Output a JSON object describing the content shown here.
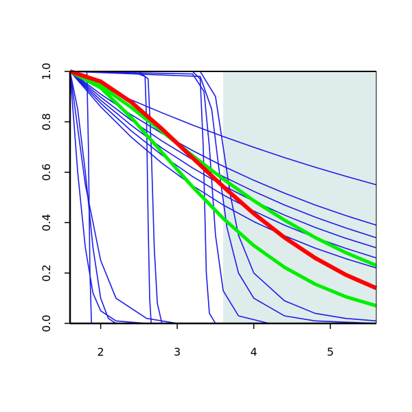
{
  "chart_data": {
    "type": "line",
    "xlim": [
      1.6,
      5.6
    ],
    "ylim": [
      0,
      1
    ],
    "xticks": [
      2,
      3,
      4,
      5
    ],
    "yticks": [
      {
        "value": 0,
        "label": "0.0"
      },
      0.2,
      0.4,
      0.6,
      0.8,
      {
        "value": 1,
        "label": "1.0"
      }
    ],
    "shaded_region": {
      "xlim": [
        3.6,
        5.6
      ],
      "color": "#dfecec"
    },
    "x": [
      1.6,
      2.0,
      2.4,
      2.8,
      3.2,
      3.6,
      4.0,
      4.4,
      4.8,
      5.2,
      5.6
    ],
    "series": [
      {
        "color": "#1c1ce6",
        "width": 1.6,
        "values": [
          1,
          0.942,
          0.887,
          0.836,
          0.787,
          0.742,
          0.699,
          0.658,
          0.62,
          0.584,
          0.55
        ]
      },
      {
        "color": "#1c1ce6",
        "width": 1.6,
        "values": [
          1,
          0.91,
          0.828,
          0.754,
          0.686,
          0.624,
          0.568,
          0.517,
          0.47,
          0.428,
          0.39
        ]
      },
      {
        "color": "#1c1ce6",
        "width": 1.6,
        "values": [
          1,
          0.898,
          0.806,
          0.724,
          0.65,
          0.583,
          0.524,
          0.47,
          0.422,
          0.379,
          0.34
        ]
      },
      {
        "color": "#1c1ce6",
        "width": 1.6,
        "values": [
          1,
          0.886,
          0.786,
          0.696,
          0.617,
          0.547,
          0.485,
          0.43,
          0.381,
          0.338,
          0.3
        ]
      },
      {
        "color": "#1c1ce6",
        "width": 1.6,
        "values": [
          1,
          0.874,
          0.764,
          0.668,
          0.583,
          0.51,
          0.446,
          0.39,
          0.341,
          0.298,
          0.26
        ]
      },
      {
        "color": "#1c1ce6",
        "width": 1.6,
        "values": [
          1,
          0.86,
          0.739,
          0.636,
          0.547,
          0.47,
          0.404,
          0.348,
          0.299,
          0.257,
          0.22
        ]
      },
      {
        "color": "#1c1ce6",
        "width": 1.6,
        "x": [
          1.6,
          1.82,
          1.84,
          1.86,
          1.88,
          5.6
        ],
        "values": [
          1,
          1,
          0.7,
          0.2,
          0,
          0
        ]
      },
      {
        "color": "#1c1ce6",
        "width": 1.6,
        "x": [
          1.6,
          1.7,
          1.8,
          1.9,
          2.0,
          2.2,
          2.6,
          5.6
        ],
        "values": [
          1,
          0.6,
          0.3,
          0.12,
          0.05,
          0.01,
          0,
          0
        ]
      },
      {
        "color": "#1c1ce6",
        "width": 1.6,
        "x": [
          1.6,
          1.8,
          2.0,
          2.2,
          2.6,
          3.0,
          5.6
        ],
        "values": [
          1,
          0.55,
          0.25,
          0.1,
          0.02,
          0,
          0
        ]
      },
      {
        "color": "#1c1ce6",
        "width": 1.6,
        "x": [
          1.6,
          1.7,
          1.8,
          1.9,
          2.0,
          2.1,
          2.2,
          5.6
        ],
        "values": [
          1,
          0.85,
          0.6,
          0.3,
          0.1,
          0.02,
          0,
          0
        ]
      },
      {
        "color": "#1c1ce6",
        "width": 1.6,
        "x": [
          1.6,
          1.8,
          2.4,
          2.58,
          2.6,
          2.62,
          2.64,
          2.66,
          5.6
        ],
        "values": [
          1,
          1,
          1,
          0.98,
          0.8,
          0.4,
          0.1,
          0,
          0
        ]
      },
      {
        "color": "#1c1ce6",
        "width": 1.6,
        "x": [
          1.6,
          2.5,
          2.62,
          2.66,
          2.7,
          2.74,
          2.8,
          5.6
        ],
        "values": [
          1,
          1,
          0.97,
          0.7,
          0.3,
          0.08,
          0,
          0
        ]
      },
      {
        "color": "#1c1ce6",
        "width": 1.6,
        "x": [
          1.6,
          3.2,
          3.3,
          3.34,
          3.38,
          3.42,
          3.5,
          5.6
        ],
        "values": [
          1,
          1,
          0.97,
          0.7,
          0.2,
          0.04,
          0,
          0
        ]
      },
      {
        "color": "#1c1ce6",
        "width": 1.6,
        "x": [
          1.6,
          3.2,
          3.35,
          3.42,
          3.5,
          3.6,
          3.8,
          4.2,
          5.6
        ],
        "values": [
          1,
          0.99,
          0.92,
          0.7,
          0.35,
          0.13,
          0.03,
          0,
          0
        ]
      },
      {
        "color": "#1c1ce6",
        "width": 1.6,
        "x": [
          1.6,
          3.3,
          3.45,
          3.55,
          3.65,
          3.8,
          4.0,
          4.4,
          4.8,
          5.6
        ],
        "values": [
          1,
          0.98,
          0.85,
          0.6,
          0.38,
          0.2,
          0.1,
          0.03,
          0.01,
          0
        ]
      },
      {
        "color": "#1c1ce6",
        "width": 1.6,
        "x": [
          1.6,
          3.3,
          3.5,
          3.6,
          3.7,
          3.8,
          4.0,
          4.4,
          4.8,
          5.2,
          5.6
        ],
        "values": [
          1,
          1,
          0.9,
          0.7,
          0.5,
          0.35,
          0.2,
          0.09,
          0.04,
          0.02,
          0.01
        ]
      },
      {
        "color": "#00ee00",
        "width": 5,
        "values": [
          1,
          0.943,
          0.857,
          0.762,
          0.666,
          0.573,
          0.487,
          0.41,
          0.341,
          0.281,
          0.23
        ]
      },
      {
        "color": "#00ee00",
        "width": 5,
        "values": [
          1,
          0.935,
          0.817,
          0.679,
          0.542,
          0.417,
          0.309,
          0.223,
          0.156,
          0.106,
          0.07
        ]
      },
      {
        "color": "#ff0000",
        "width": 6,
        "values": [
          1,
          0.96,
          0.878,
          0.772,
          0.657,
          0.543,
          0.436,
          0.341,
          0.26,
          0.193,
          0.14
        ]
      }
    ]
  }
}
